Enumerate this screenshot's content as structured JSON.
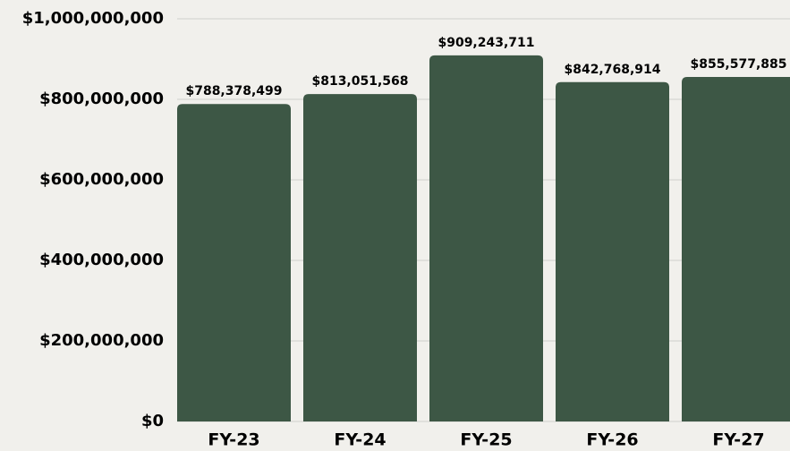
{
  "chart_data": {
    "type": "bar",
    "categories": [
      "FY-23",
      "FY-24",
      "FY-25",
      "FY-26",
      "FY-27"
    ],
    "values": [
      788378499,
      813051568,
      909243711,
      842768914,
      855577885
    ],
    "value_labels": [
      "$788,378,499",
      "$813,051,568",
      "$909,243,711",
      "$842,768,914",
      "$855,577,885"
    ],
    "color": "#3d5745",
    "ylim": [
      0,
      1000000000
    ],
    "yticks": [
      {
        "value": 0,
        "label": "$0"
      },
      {
        "value": 200000000,
        "label": "$200,000,000"
      },
      {
        "value": 400000000,
        "label": "$400,000,000"
      },
      {
        "value": 600000000,
        "label": "$600,000,000"
      },
      {
        "value": 800000000,
        "label": "$800,000,000"
      },
      {
        "value": 1000000000,
        "label": "$1,000,000,000"
      }
    ],
    "grid": true
  }
}
